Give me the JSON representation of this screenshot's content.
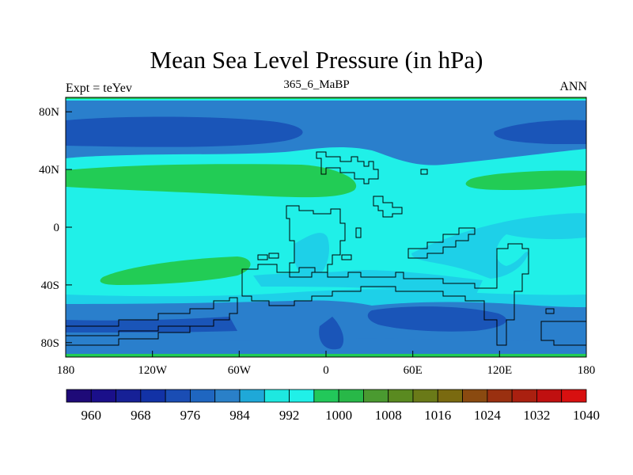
{
  "title": "Mean Sea Level Pressure (in hPa)",
  "subtitle_left": "Expt = teYev",
  "subtitle_center": "365_6_MaBP",
  "subtitle_right": "ANN",
  "x_ticks": [
    "180",
    "120W",
    "60W",
    "0",
    "60E",
    "120E",
    "180"
  ],
  "y_ticks": [
    "80N",
    "40N",
    "0",
    "40S",
    "80S"
  ],
  "colorbar": {
    "colors": [
      "#1e0a78",
      "#1a0f8a",
      "#162096",
      "#1232a6",
      "#1a4db4",
      "#1f66c0",
      "#2a80c8",
      "#1fa8d8",
      "#1ee8e0",
      "#20f0e8",
      "#22c85a",
      "#28b848",
      "#4a9a30",
      "#5a8a20",
      "#6a7a18",
      "#7a6a10",
      "#8a4a10",
      "#9a3010",
      "#aa2010",
      "#c01010",
      "#d81010"
    ],
    "labels": [
      "960",
      "968",
      "976",
      "984",
      "992",
      "1000",
      "1008",
      "1016",
      "1024",
      "1032",
      "1040"
    ]
  },
  "map_colors": {
    "c984": "#1a55b8",
    "c988": "#2a7fcc",
    "c996": "#1ed0e8",
    "c1000": "#20f0e8",
    "c1008": "#22cc55"
  }
}
